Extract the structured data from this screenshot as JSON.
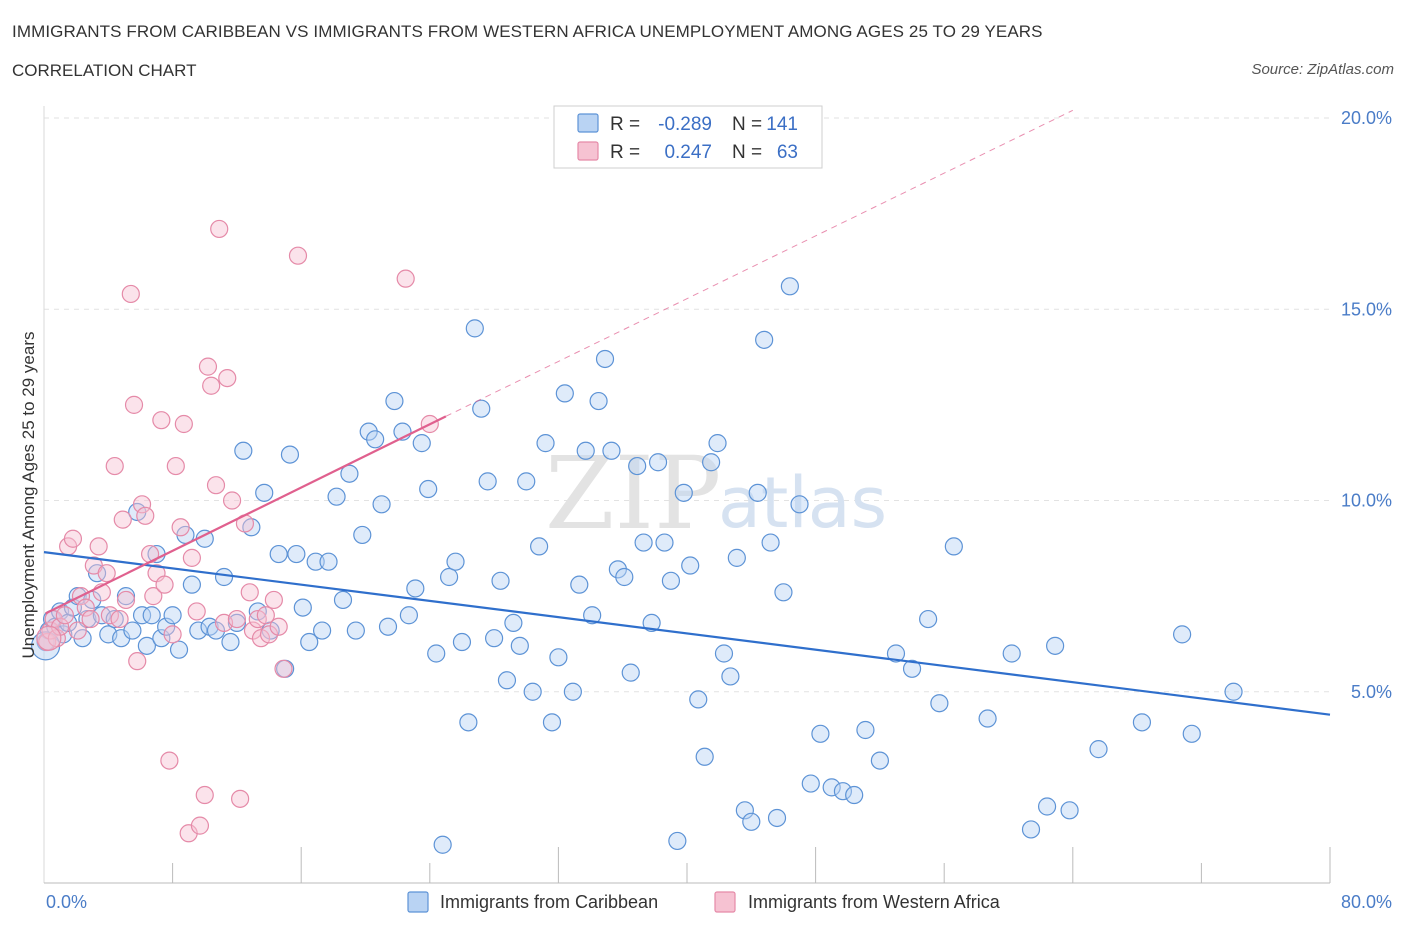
{
  "header": {
    "title": "IMMIGRANTS FROM CARIBBEAN VS IMMIGRANTS FROM WESTERN AFRICA UNEMPLOYMENT AMONG AGES 25 TO 29 YEARS",
    "subtitle": "CORRELATION CHART",
    "source": "Source: ZipAtlas.com"
  },
  "watermark": {
    "zip": "ZIP",
    "atlas": "atlas"
  },
  "colors": {
    "caribbean_fill": "#b9d3f3",
    "caribbean_stroke": "#5d93d6",
    "caribbean_line": "#2f6fcc",
    "wafrica_fill": "#f6c2d2",
    "wafrica_stroke": "#e58aa8",
    "wafrica_line": "#e0608e",
    "grid": "#e2e2e2",
    "tick": "#4a7cc7"
  },
  "stats": {
    "caribbean": {
      "r_label": "R =",
      "r_value": "-0.289",
      "n_label": "N =",
      "n_value": "141"
    },
    "wafrica": {
      "r_label": "R =",
      "r_value": "0.247",
      "n_label": "N =",
      "n_value": "63"
    }
  },
  "chart_data": {
    "type": "scatter",
    "xlabel": "",
    "ylabel": "Unemployment Among Ages 25 to 29 years",
    "xlim": [
      0,
      80
    ],
    "ylim": [
      0,
      20
    ],
    "x_tick_labels": {
      "min": "0.0%",
      "max": "80.0%"
    },
    "y_ticks": [
      {
        "value": 5,
        "label": "5.0%"
      },
      {
        "value": 10,
        "label": "10.0%"
      },
      {
        "value": 15,
        "label": "15.0%"
      },
      {
        "value": 20,
        "label": "20.0%"
      }
    ],
    "grid": "horizontal dashed",
    "legend_position": "bottom-center",
    "series": [
      {
        "name": "Immigrants from Caribbean",
        "trend": {
          "x": [
            0,
            80
          ],
          "y": [
            8.65,
            4.4
          ],
          "style": "solid"
        },
        "points": [
          [
            0.1,
            6.3
          ],
          [
            0.3,
            6.6
          ],
          [
            0.5,
            6.9
          ],
          [
            0.7,
            6.7
          ],
          [
            1.0,
            7.1
          ],
          [
            1.2,
            6.5
          ],
          [
            1.5,
            6.8
          ],
          [
            1.8,
            7.2
          ],
          [
            2.1,
            7.5
          ],
          [
            2.4,
            6.4
          ],
          [
            2.7,
            6.9
          ],
          [
            3.0,
            7.4
          ],
          [
            3.3,
            8.1
          ],
          [
            3.6,
            7.0
          ],
          [
            4.0,
            6.5
          ],
          [
            4.4,
            6.9
          ],
          [
            4.8,
            6.4
          ],
          [
            5.1,
            7.5
          ],
          [
            5.5,
            6.6
          ],
          [
            5.8,
            9.7
          ],
          [
            6.1,
            7.0
          ],
          [
            6.4,
            6.2
          ],
          [
            6.7,
            7.0
          ],
          [
            7.0,
            8.6
          ],
          [
            7.3,
            6.4
          ],
          [
            7.6,
            6.7
          ],
          [
            8.0,
            7.0
          ],
          [
            8.4,
            6.1
          ],
          [
            8.8,
            9.1
          ],
          [
            9.2,
            7.8
          ],
          [
            9.6,
            6.6
          ],
          [
            10.0,
            9.0
          ],
          [
            10.3,
            6.7
          ],
          [
            10.7,
            6.6
          ],
          [
            11.2,
            8.0
          ],
          [
            11.6,
            6.3
          ],
          [
            12.0,
            6.8
          ],
          [
            12.4,
            11.3
          ],
          [
            12.9,
            9.3
          ],
          [
            13.3,
            7.1
          ],
          [
            13.7,
            10.2
          ],
          [
            14.1,
            6.6
          ],
          [
            14.6,
            8.6
          ],
          [
            15.0,
            5.6
          ],
          [
            15.3,
            11.2
          ],
          [
            15.7,
            8.6
          ],
          [
            16.1,
            7.2
          ],
          [
            16.5,
            6.3
          ],
          [
            16.9,
            8.4
          ],
          [
            17.3,
            6.6
          ],
          [
            17.7,
            8.4
          ],
          [
            18.2,
            10.1
          ],
          [
            18.6,
            7.4
          ],
          [
            19.0,
            10.7
          ],
          [
            19.4,
            6.6
          ],
          [
            19.8,
            9.1
          ],
          [
            20.2,
            11.8
          ],
          [
            20.6,
            11.6
          ],
          [
            21.0,
            9.9
          ],
          [
            21.4,
            6.7
          ],
          [
            21.8,
            12.6
          ],
          [
            22.3,
            11.8
          ],
          [
            22.7,
            7.0
          ],
          [
            23.1,
            7.7
          ],
          [
            23.5,
            11.5
          ],
          [
            23.9,
            10.3
          ],
          [
            24.4,
            6.0
          ],
          [
            24.8,
            1.0
          ],
          [
            25.2,
            8.0
          ],
          [
            25.6,
            8.4
          ],
          [
            26.0,
            6.3
          ],
          [
            26.4,
            4.2
          ],
          [
            26.8,
            14.5
          ],
          [
            27.2,
            12.4
          ],
          [
            27.6,
            10.5
          ],
          [
            28.0,
            6.4
          ],
          [
            28.4,
            7.9
          ],
          [
            28.8,
            5.3
          ],
          [
            29.2,
            6.8
          ],
          [
            29.6,
            6.2
          ],
          [
            30.0,
            10.5
          ],
          [
            30.4,
            5.0
          ],
          [
            30.8,
            8.8
          ],
          [
            31.2,
            11.5
          ],
          [
            31.6,
            4.2
          ],
          [
            32.0,
            5.9
          ],
          [
            32.4,
            12.8
          ],
          [
            32.9,
            5.0
          ],
          [
            33.3,
            7.8
          ],
          [
            33.7,
            11.3
          ],
          [
            34.1,
            7.0
          ],
          [
            34.5,
            12.6
          ],
          [
            34.9,
            13.7
          ],
          [
            35.3,
            11.3
          ],
          [
            35.7,
            8.2
          ],
          [
            36.1,
            8.0
          ],
          [
            36.5,
            5.5
          ],
          [
            36.9,
            10.9
          ],
          [
            37.3,
            8.9
          ],
          [
            37.8,
            6.8
          ],
          [
            38.2,
            11.0
          ],
          [
            38.6,
            8.9
          ],
          [
            39.0,
            7.9
          ],
          [
            39.4,
            1.1
          ],
          [
            39.8,
            10.2
          ],
          [
            40.2,
            8.3
          ],
          [
            40.7,
            4.8
          ],
          [
            41.1,
            3.3
          ],
          [
            41.5,
            11.0
          ],
          [
            41.9,
            11.5
          ],
          [
            42.3,
            6.0
          ],
          [
            42.7,
            5.4
          ],
          [
            43.1,
            8.5
          ],
          [
            43.6,
            1.9
          ],
          [
            44.0,
            1.6
          ],
          [
            44.4,
            10.2
          ],
          [
            44.8,
            14.2
          ],
          [
            45.2,
            8.9
          ],
          [
            45.6,
            1.7
          ],
          [
            46.0,
            7.6
          ],
          [
            46.4,
            15.6
          ],
          [
            47.0,
            9.9
          ],
          [
            47.7,
            2.6
          ],
          [
            48.3,
            3.9
          ],
          [
            49.0,
            2.5
          ],
          [
            49.7,
            2.4
          ],
          [
            50.4,
            2.3
          ],
          [
            51.1,
            4.0
          ],
          [
            52.0,
            3.2
          ],
          [
            53.0,
            6.0
          ],
          [
            54.0,
            5.6
          ],
          [
            55.0,
            6.9
          ],
          [
            55.7,
            4.7
          ],
          [
            56.6,
            8.8
          ],
          [
            58.7,
            4.3
          ],
          [
            60.2,
            6.0
          ],
          [
            61.4,
            1.4
          ],
          [
            62.4,
            2.0
          ],
          [
            62.9,
            6.2
          ],
          [
            63.8,
            1.9
          ],
          [
            65.6,
            3.5
          ],
          [
            68.3,
            4.2
          ],
          [
            70.8,
            6.5
          ],
          [
            71.4,
            3.9
          ],
          [
            74.0,
            5.0
          ]
        ]
      },
      {
        "name": "Immigrants from Western Africa",
        "trend": {
          "x": [
            0.1,
            25.0
          ],
          "y": [
            7.05,
            12.2
          ],
          "style": "solid",
          "extension": {
            "x": [
              25.0,
              64.0
            ],
            "y": [
              12.2,
              20.2
            ],
            "style": "dashed"
          }
        },
        "points": [
          [
            0.2,
            6.3
          ],
          [
            0.4,
            6.6
          ],
          [
            0.6,
            6.9
          ],
          [
            0.8,
            6.4
          ],
          [
            1.0,
            6.7
          ],
          [
            1.3,
            7.0
          ],
          [
            1.5,
            8.8
          ],
          [
            1.8,
            9.0
          ],
          [
            2.1,
            6.6
          ],
          [
            2.3,
            7.5
          ],
          [
            2.6,
            7.2
          ],
          [
            2.9,
            6.9
          ],
          [
            3.1,
            8.3
          ],
          [
            3.4,
            8.8
          ],
          [
            3.6,
            7.6
          ],
          [
            3.9,
            8.1
          ],
          [
            4.1,
            7.0
          ],
          [
            4.4,
            10.9
          ],
          [
            4.7,
            6.9
          ],
          [
            4.9,
            9.5
          ],
          [
            5.1,
            7.4
          ],
          [
            5.4,
            15.4
          ],
          [
            5.6,
            12.5
          ],
          [
            5.8,
            5.8
          ],
          [
            6.1,
            9.9
          ],
          [
            6.3,
            9.6
          ],
          [
            6.6,
            8.6
          ],
          [
            6.8,
            7.5
          ],
          [
            7.0,
            8.1
          ],
          [
            7.3,
            12.1
          ],
          [
            7.5,
            7.8
          ],
          [
            7.8,
            3.2
          ],
          [
            8.0,
            6.5
          ],
          [
            8.2,
            10.9
          ],
          [
            8.5,
            9.3
          ],
          [
            8.7,
            12.0
          ],
          [
            9.0,
            1.3
          ],
          [
            9.2,
            8.5
          ],
          [
            9.5,
            7.1
          ],
          [
            9.7,
            1.5
          ],
          [
            10.0,
            2.3
          ],
          [
            10.2,
            13.5
          ],
          [
            10.4,
            13.0
          ],
          [
            10.7,
            10.4
          ],
          [
            10.9,
            17.1
          ],
          [
            11.2,
            6.8
          ],
          [
            11.4,
            13.2
          ],
          [
            11.7,
            10.0
          ],
          [
            12.0,
            6.9
          ],
          [
            12.2,
            2.2
          ],
          [
            12.5,
            9.4
          ],
          [
            12.8,
            7.6
          ],
          [
            13.0,
            6.6
          ],
          [
            13.3,
            6.9
          ],
          [
            13.5,
            6.4
          ],
          [
            13.8,
            7.0
          ],
          [
            14.0,
            6.5
          ],
          [
            14.3,
            7.4
          ],
          [
            14.6,
            6.7
          ],
          [
            14.9,
            5.6
          ],
          [
            15.8,
            16.4
          ],
          [
            22.5,
            15.8
          ],
          [
            24.0,
            12.0
          ]
        ]
      }
    ]
  },
  "legend": {
    "caribbean": "Immigrants from Caribbean",
    "wafrica": "Immigrants from Western Africa"
  }
}
